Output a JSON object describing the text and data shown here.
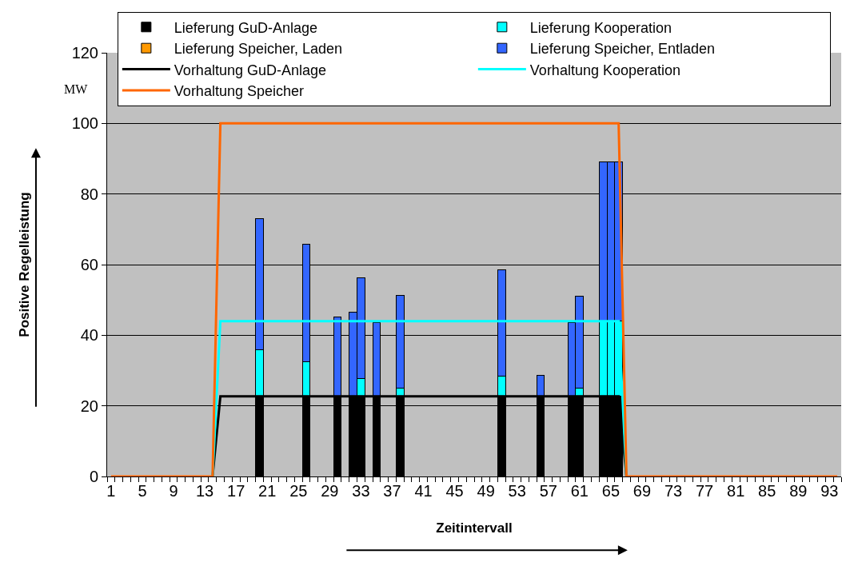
{
  "chart_data": {
    "type": "bar",
    "stacked": true,
    "xlabel": "Zeitintervall",
    "ylabel": "Positive Regelleistung",
    "annotations": [
      "MW"
    ],
    "categories": [
      "1",
      null,
      null,
      null,
      "5",
      null,
      null,
      null,
      "9",
      null,
      null,
      null,
      "13",
      null,
      null,
      null,
      "17",
      null,
      null,
      null,
      "21",
      null,
      null,
      null,
      "25",
      null,
      null,
      null,
      "29",
      null,
      null,
      null,
      "33",
      null,
      null,
      null,
      "37",
      null,
      null,
      null,
      "41",
      null,
      null,
      null,
      "45",
      null,
      null,
      null,
      "49",
      null,
      null,
      null,
      "53",
      null,
      null,
      null,
      "57",
      null,
      null,
      null,
      "61",
      null,
      null,
      null,
      "65",
      null,
      null,
      null,
      "69",
      null,
      null,
      null,
      "73",
      null,
      null,
      null,
      "77",
      null,
      null,
      null,
      "81",
      null,
      null,
      null,
      "85",
      null,
      null,
      null,
      "89",
      null,
      null,
      null,
      "93",
      null
    ],
    "ylim": [
      0,
      120
    ],
    "yticks": [
      0,
      20,
      40,
      60,
      80,
      100,
      120
    ],
    "grid": "y",
    "legend": "top",
    "series": [
      {
        "name": "Lieferung GuD-Anlage",
        "type": "bar",
        "color": "#000000",
        "values": [
          null,
          null,
          null,
          null,
          null,
          null,
          null,
          null,
          null,
          null,
          null,
          null,
          null,
          null,
          null,
          null,
          null,
          null,
          null,
          22.7,
          null,
          null,
          null,
          null,
          null,
          22.7,
          null,
          null,
          null,
          22.7,
          null,
          22.7,
          22.7,
          null,
          22.7,
          null,
          null,
          22.7,
          null,
          null,
          null,
          null,
          null,
          null,
          null,
          null,
          null,
          null,
          null,
          null,
          22.7,
          null,
          null,
          null,
          null,
          22.7,
          null,
          null,
          null,
          22.7,
          22.7,
          null,
          null,
          22.7,
          22.7,
          22.7,
          null,
          null,
          null,
          null,
          null,
          null,
          null,
          null,
          null,
          null,
          null,
          null,
          null,
          null,
          null,
          null,
          null,
          null,
          null,
          null,
          null,
          null,
          null,
          null,
          null,
          null,
          null,
          null
        ]
      },
      {
        "name": "Lieferung Kooperation",
        "type": "bar",
        "color": "#00ffff",
        "values": [
          null,
          null,
          null,
          null,
          null,
          null,
          null,
          null,
          null,
          null,
          null,
          null,
          null,
          null,
          null,
          null,
          null,
          null,
          null,
          13.1,
          null,
          null,
          null,
          null,
          null,
          9.7,
          null,
          null,
          null,
          null,
          null,
          null,
          5.0,
          null,
          null,
          null,
          null,
          2.4,
          null,
          null,
          null,
          null,
          null,
          null,
          null,
          null,
          null,
          null,
          null,
          null,
          5.8,
          null,
          null,
          null,
          null,
          null,
          null,
          null,
          null,
          null,
          2.4,
          null,
          null,
          21.3,
          21.3,
          21.3,
          null,
          null,
          null,
          null,
          null,
          null,
          null,
          null,
          null,
          null,
          null,
          null,
          null,
          null,
          null,
          null,
          null,
          null,
          null,
          null,
          null,
          null,
          null,
          null,
          null,
          null,
          null,
          null
        ]
      },
      {
        "name": "Lieferung Speicher, Laden",
        "type": "bar",
        "color": "#ff9900",
        "values": [
          null,
          null,
          null,
          null,
          null,
          null,
          null,
          null,
          null,
          null,
          null,
          null,
          null,
          null,
          null,
          null,
          null,
          null,
          null,
          null,
          null,
          null,
          null,
          null,
          null,
          null,
          null,
          null,
          null,
          null,
          null,
          null,
          null,
          null,
          null,
          null,
          null,
          null,
          null,
          null,
          null,
          null,
          null,
          null,
          null,
          null,
          null,
          null,
          null,
          null,
          null,
          null,
          null,
          null,
          null,
          null,
          null,
          null,
          null,
          null,
          null,
          null,
          null,
          null,
          null,
          null,
          null,
          null,
          null,
          null,
          null,
          null,
          null,
          null,
          null,
          null,
          null,
          null,
          null,
          null,
          null,
          null,
          null,
          null,
          null,
          null,
          null,
          null,
          null,
          null,
          null,
          null,
          null,
          null
        ]
      },
      {
        "name": "Lieferung Speicher, Entladen",
        "type": "bar",
        "color": "#3366ff",
        "values": [
          null,
          null,
          null,
          null,
          null,
          null,
          null,
          null,
          null,
          null,
          null,
          null,
          null,
          null,
          null,
          null,
          null,
          null,
          null,
          37.2,
          null,
          null,
          null,
          null,
          null,
          33.4,
          null,
          null,
          null,
          22.5,
          null,
          23.9,
          28.6,
          null,
          20.9,
          null,
          null,
          26.2,
          null,
          null,
          null,
          null,
          null,
          null,
          null,
          null,
          null,
          null,
          null,
          null,
          30.0,
          null,
          null,
          null,
          null,
          6.0,
          null,
          null,
          null,
          20.9,
          25.9,
          null,
          null,
          45.0,
          45.0,
          45.0,
          null,
          null,
          null,
          null,
          null,
          null,
          null,
          null,
          null,
          null,
          null,
          null,
          null,
          null,
          null,
          null,
          null,
          null,
          null,
          null,
          null,
          null,
          null,
          null,
          null,
          null,
          null,
          null
        ]
      },
      {
        "name": "Vorhaltung GuD-Anlage",
        "type": "line",
        "color": "#000000",
        "values": [
          null,
          null,
          null,
          null,
          null,
          null,
          null,
          null,
          null,
          null,
          null,
          null,
          null,
          0,
          22.7,
          22.7,
          22.7,
          22.7,
          22.7,
          22.7,
          22.7,
          22.7,
          22.7,
          22.7,
          22.7,
          22.7,
          22.7,
          22.7,
          22.7,
          22.7,
          22.7,
          22.7,
          22.7,
          22.7,
          22.7,
          22.7,
          22.7,
          22.7,
          22.7,
          22.7,
          22.7,
          22.7,
          22.7,
          22.7,
          22.7,
          22.7,
          22.7,
          22.7,
          22.7,
          22.7,
          22.7,
          22.7,
          22.7,
          22.7,
          22.7,
          22.7,
          22.7,
          22.7,
          22.7,
          22.7,
          22.7,
          22.7,
          22.7,
          22.7,
          22.7,
          22.7,
          0,
          null,
          null,
          null,
          null,
          null,
          null,
          null,
          null,
          null,
          null,
          null,
          null,
          null,
          null,
          null,
          null,
          null,
          null,
          null,
          null,
          null,
          null,
          null,
          null,
          null,
          null,
          null
        ]
      },
      {
        "name": "Vorhaltung Kooperation",
        "type": "line",
        "color": "#00ffff",
        "values": [
          null,
          null,
          null,
          null,
          null,
          null,
          null,
          null,
          null,
          null,
          null,
          null,
          null,
          0,
          44,
          44,
          44,
          44,
          44,
          44,
          44,
          44,
          44,
          44,
          44,
          44,
          44,
          44,
          44,
          44,
          44,
          44,
          44,
          44,
          44,
          44,
          44,
          44,
          44,
          44,
          44,
          44,
          44,
          44,
          44,
          44,
          44,
          44,
          44,
          44,
          44,
          44,
          44,
          44,
          44,
          44,
          44,
          44,
          44,
          44,
          44,
          44,
          44,
          44,
          44,
          44,
          0,
          null,
          null,
          null,
          null,
          null,
          null,
          null,
          null,
          null,
          null,
          null,
          null,
          null,
          null,
          null,
          null,
          null,
          null,
          null,
          null,
          null,
          null,
          null,
          null,
          null,
          null,
          null
        ]
      },
      {
        "name": "Vorhaltung Speicher",
        "type": "line",
        "color": "#ff6600",
        "values": [
          0,
          0,
          0,
          0,
          0,
          0,
          0,
          0,
          0,
          0,
          0,
          0,
          0,
          0,
          100,
          100,
          100,
          100,
          100,
          100,
          100,
          100,
          100,
          100,
          100,
          100,
          100,
          100,
          100,
          100,
          100,
          100,
          100,
          100,
          100,
          100,
          100,
          100,
          100,
          100,
          100,
          100,
          100,
          100,
          100,
          100,
          100,
          100,
          100,
          100,
          100,
          100,
          100,
          100,
          100,
          100,
          100,
          100,
          100,
          100,
          100,
          100,
          100,
          100,
          100,
          100,
          0,
          0,
          0,
          0,
          0,
          0,
          0,
          0,
          0,
          0,
          0,
          0,
          0,
          0,
          0,
          0,
          0,
          0,
          0,
          0,
          0,
          0,
          0,
          0,
          0,
          0,
          0,
          0
        ]
      }
    ]
  }
}
